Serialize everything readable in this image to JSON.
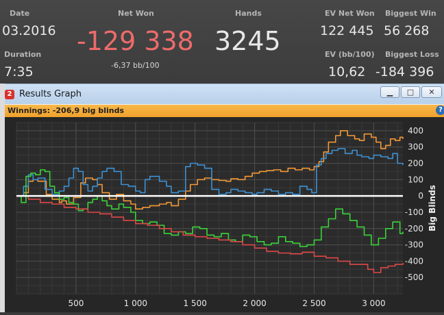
{
  "stats": {
    "date_label": "Date",
    "date_value": "03.2016",
    "duration_label": "Duration",
    "duration_value": "7:35",
    "net_won_label": "Net Won",
    "net_won_value": "-129 338",
    "net_won_bb": "-6,37 bb/100",
    "hands_label": "Hands",
    "hands_value": "3245",
    "ev_net_won_label": "EV Net Won",
    "ev_net_won_value": "122 445",
    "ev_bb_label": "EV (bb/100)",
    "ev_bb_value": "10,62",
    "biggest_win_label": "Biggest Win",
    "biggest_win_value": "56 268",
    "biggest_loss_label": "Biggest Loss",
    "biggest_loss_value": "-184 396"
  },
  "window": {
    "title": "Results Graph",
    "icon_glyph": "2",
    "minimize": "▁",
    "maximize": "□",
    "close": "✕",
    "help": "?",
    "winnings_text": "Winnings: -206,9 big blinds"
  },
  "colors": {
    "net_won": "#ee6b6b",
    "orange": "#f39a36",
    "blue": "#3d92d6",
    "green": "#3ad43a",
    "red": "#e04848",
    "zero_line": "#ffffff"
  },
  "chart_data": {
    "type": "line",
    "xlabel": "",
    "ylabel": "Big Blinds",
    "xlim": [
      0,
      3245
    ],
    "ylim": [
      -600,
      450
    ],
    "xticks": [
      500,
      1000,
      1500,
      2000,
      2500,
      3000
    ],
    "xtick_labels": [
      "500",
      "1 000",
      "1 500",
      "2 000",
      "2 500",
      "3 000"
    ],
    "yticks": [
      400,
      300,
      200,
      100,
      0,
      -100,
      -200,
      -300,
      -400,
      -500
    ],
    "ytick_labels": [
      "400",
      "300",
      "200",
      "100",
      "0",
      "-100",
      "-200",
      "-300",
      "-400",
      "-500"
    ],
    "grid": true,
    "series": [
      {
        "color": "#f39a36",
        "x": [
          0,
          60,
          100,
          140,
          180,
          250,
          300,
          360,
          380,
          420,
          480,
          540,
          580,
          640,
          680,
          720,
          780,
          840,
          900,
          960,
          1000,
          1060,
          1120,
          1200,
          1260,
          1300,
          1360,
          1420,
          1460,
          1520,
          1580,
          1640,
          1700,
          1760,
          1800,
          1860,
          1920,
          1980,
          2040,
          2100,
          2160,
          2220,
          2280,
          2340,
          2400,
          2460,
          2500,
          2540,
          2580,
          2620,
          2680,
          2720,
          2780,
          2840,
          2880,
          2920,
          2980,
          3020,
          3060,
          3100,
          3140,
          3180,
          3220,
          3245
        ],
        "y": [
          0,
          20,
          90,
          100,
          90,
          10,
          -20,
          -40,
          -30,
          -50,
          -10,
          80,
          110,
          100,
          70,
          20,
          -20,
          10,
          -30,
          -50,
          -80,
          -70,
          -60,
          -50,
          -40,
          -60,
          -20,
          30,
          70,
          100,
          110,
          100,
          95,
          90,
          105,
          100,
          120,
          140,
          150,
          155,
          160,
          150,
          170,
          160,
          170,
          160,
          180,
          210,
          270,
          330,
          370,
          400,
          370,
          350,
          340,
          380,
          360,
          330,
          290,
          310,
          350,
          340,
          360,
          350
        ]
      },
      {
        "color": "#3d92d6",
        "x": [
          0,
          60,
          100,
          140,
          180,
          240,
          300,
          360,
          400,
          440,
          480,
          520,
          560,
          600,
          640,
          680,
          720,
          760,
          820,
          880,
          940,
          1000,
          1040,
          1080,
          1120,
          1200,
          1260,
          1300,
          1360,
          1420,
          1460,
          1520,
          1580,
          1640,
          1700,
          1760,
          1800,
          1860,
          1920,
          1980,
          2020,
          2080,
          2140,
          2200,
          2260,
          2320,
          2380,
          2440,
          2480,
          2520,
          2560,
          2600,
          2650,
          2700,
          2760,
          2820,
          2860,
          2900,
          2960,
          3000,
          3060,
          3120,
          3160,
          3200,
          3245
        ],
        "y": [
          0,
          60,
          130,
          100,
          110,
          40,
          10,
          30,
          60,
          110,
          170,
          150,
          70,
          30,
          60,
          110,
          150,
          170,
          150,
          70,
          60,
          30,
          20,
          100,
          120,
          90,
          60,
          20,
          30,
          180,
          200,
          190,
          170,
          40,
          10,
          20,
          40,
          30,
          20,
          10,
          20,
          40,
          30,
          10,
          20,
          10,
          60,
          40,
          20,
          190,
          230,
          260,
          280,
          290,
          260,
          280,
          250,
          240,
          230,
          250,
          240,
          230,
          260,
          200,
          190
        ]
      },
      {
        "color": "#3ad43a",
        "x": [
          0,
          40,
          80,
          120,
          160,
          200,
          240,
          280,
          320,
          360,
          400,
          440,
          480,
          520,
          560,
          600,
          640,
          680,
          720,
          760,
          800,
          860,
          900,
          960,
          1000,
          1060,
          1120,
          1180,
          1240,
          1300,
          1360,
          1420,
          1480,
          1540,
          1600,
          1660,
          1720,
          1780,
          1840,
          1900,
          1960,
          2020,
          2080,
          2140,
          2200,
          2260,
          2320,
          2380,
          2440,
          2500,
          2560,
          2620,
          2680,
          2740,
          2800,
          2860,
          2920,
          2980,
          3040,
          3100,
          3160,
          3220,
          3245
        ],
        "y": [
          0,
          -40,
          120,
          140,
          130,
          160,
          150,
          60,
          20,
          -20,
          -10,
          -40,
          -50,
          -90,
          -80,
          -40,
          -20,
          0,
          -30,
          -60,
          -80,
          -50,
          -70,
          -100,
          -150,
          -170,
          -160,
          -180,
          -230,
          -240,
          -220,
          -230,
          -190,
          -200,
          -240,
          -250,
          -230,
          -270,
          -280,
          -240,
          -250,
          -280,
          -300,
          -290,
          -250,
          -280,
          -290,
          -310,
          -300,
          -270,
          -190,
          -140,
          -80,
          -110,
          -150,
          -190,
          -240,
          -300,
          -260,
          -200,
          -160,
          -230,
          -220
        ]
      },
      {
        "color": "#e04848",
        "x": [
          0,
          100,
          200,
          300,
          400,
          500,
          600,
          700,
          800,
          900,
          1000,
          1100,
          1200,
          1300,
          1400,
          1500,
          1600,
          1700,
          1800,
          1900,
          2000,
          2100,
          2200,
          2300,
          2400,
          2500,
          2600,
          2700,
          2800,
          2880,
          2950,
          3000,
          3060,
          3120,
          3180,
          3245
        ],
        "y": [
          0,
          -20,
          -40,
          -50,
          -70,
          -80,
          -100,
          -110,
          -130,
          -150,
          -170,
          -180,
          -200,
          -220,
          -240,
          -250,
          -260,
          -270,
          -280,
          -300,
          -320,
          -340,
          -350,
          -355,
          -345,
          -370,
          -380,
          -400,
          -420,
          -420,
          -450,
          -470,
          -440,
          -430,
          -420,
          -410
        ]
      }
    ]
  }
}
